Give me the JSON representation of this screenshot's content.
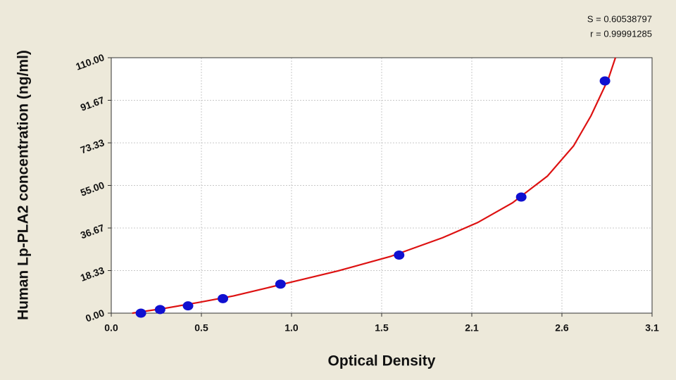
{
  "chart_data": {
    "type": "scatter",
    "x_label": "Optical Density",
    "y_label": "Human Lp-PLA2 concentration (ng/ml)",
    "annotations": [
      "S = 0.60538797",
      "r = 0.99991285"
    ],
    "xlim": [
      0,
      3.1
    ],
    "ylim": [
      0,
      110
    ],
    "xticks": [
      {
        "value": 0,
        "label": "0.0"
      },
      {
        "value": 0.5167,
        "label": "0.5"
      },
      {
        "value": 1.0333,
        "label": "1.0"
      },
      {
        "value": 1.55,
        "label": "1.5"
      },
      {
        "value": 2.0667,
        "label": "2.1"
      },
      {
        "value": 2.5833,
        "label": "2.6"
      },
      {
        "value": 3.1,
        "label": "3.1"
      }
    ],
    "yticks": [
      {
        "value": 0,
        "label": "0.00"
      },
      18.33,
      36.67,
      {
        "value": 55,
        "label": "55.00"
      },
      73.33,
      91.67,
      {
        "value": 110,
        "label": "110.00"
      }
    ],
    "grid": true,
    "series": [
      {
        "style": "markers",
        "color": "#1010d0",
        "x": [
          0.17,
          0.28,
          0.44,
          0.64,
          0.97,
          1.65,
          2.35,
          2.83
        ],
        "values": [
          0,
          1.56,
          3.13,
          6.25,
          12.5,
          25,
          50,
          100
        ]
      },
      {
        "style": "line",
        "color": "#dd1111",
        "x": [
          0.12,
          0.3,
          0.5,
          0.7,
          1.0,
          1.3,
          1.6,
          1.9,
          2.1,
          2.3,
          2.5,
          2.65,
          2.75,
          2.85,
          2.89
        ],
        "values": [
          0,
          2.0,
          4.6,
          7.4,
          12.8,
          18.2,
          24.4,
          32.5,
          39,
          47.5,
          59,
          72,
          85,
          101,
          110
        ]
      }
    ]
  }
}
